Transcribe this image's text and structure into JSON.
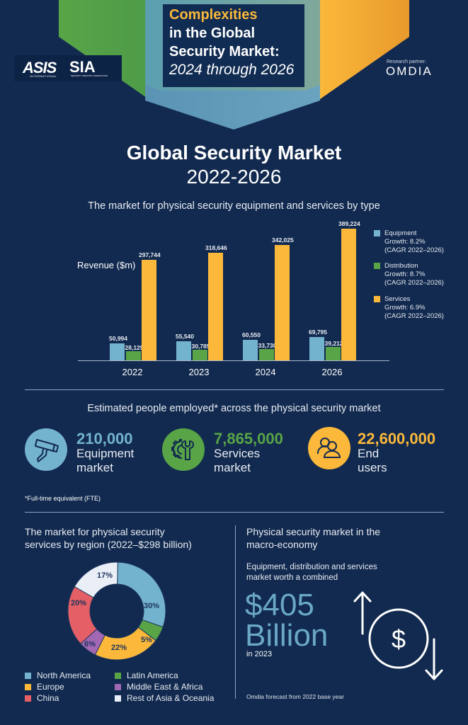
{
  "header": {
    "title_line1": "Complexities",
    "title_line2": "in the Global",
    "title_line3": "Security Market:",
    "title_line4": "2024 through 2026",
    "logo_asis": "ASIS",
    "logo_asis_sub": "INTERNATIONAL",
    "logo_sia": "SIA",
    "logo_sia_sub": "SECURITY INDUSTRY ASSOCIATION",
    "partner_label": "Research partner:",
    "partner_name": "OMDIA"
  },
  "market": {
    "title": "Global Security Market",
    "years": "2022-2026",
    "subtitle": "The market for physical security equipment and services by type",
    "ylabel": "Revenue ($m)"
  },
  "colors": {
    "background": "#122a4f",
    "equipment": "#74b3cd",
    "distribution": "#58a447",
    "services": "#fbb83a",
    "north_america": "#74b3cd",
    "latin_america": "#58a447",
    "europe": "#fbb83a",
    "middle_east_africa": "#a268b4",
    "china": "#e55f66",
    "rest_of_asia": "#e9eef7"
  },
  "chart_data": [
    {
      "type": "bar",
      "title": "The market for physical security equipment and services by type",
      "xlabel": "",
      "ylabel": "Revenue ($m)",
      "categories": [
        "2022",
        "2023",
        "2024",
        "2026"
      ],
      "series": [
        {
          "name": "Equipment",
          "values": [
            50994,
            55540,
            60550,
            69795
          ]
        },
        {
          "name": "Distribution",
          "values": [
            28129,
            30785,
            33730,
            39212
          ]
        },
        {
          "name": "Services",
          "values": [
            297744,
            318646,
            342025,
            389224
          ]
        }
      ],
      "value_labels": {
        "Equipment": [
          "50,994",
          "55,540",
          "60,550",
          "69,795"
        ],
        "Distribution": [
          "28,129",
          "30,785",
          "33,730",
          "39,212"
        ],
        "Services": [
          "297,744",
          "318,646",
          "342,025",
          "389,224"
        ]
      },
      "legend": [
        {
          "name": "Equipment",
          "growth": "Growth: 8.2%",
          "note": "(CAGR 2022–2026)"
        },
        {
          "name": "Distribution",
          "growth": "Growth: 8.7%",
          "note": "(CAGR 2022–2026)"
        },
        {
          "name": "Services",
          "growth": "Growth: 6.9%",
          "note": "(CAGR 2022–2026)"
        }
      ],
      "legend_position": "right",
      "grid": false
    },
    {
      "type": "pie",
      "title": "The market for physical security services by region (2022–$298 billion)",
      "categories": [
        "North America",
        "Latin America",
        "Europe",
        "Middle East & Africa",
        "China",
        "Rest of Asia & Oceania"
      ],
      "values": [
        30,
        5,
        22,
        6,
        20,
        17
      ],
      "labels": [
        "30%",
        "5%",
        "22%",
        "6%",
        "20%",
        "17%"
      ],
      "donut": true,
      "legend_position": "bottom"
    }
  ],
  "employment": {
    "title": "Estimated people employed* across the physical security market",
    "items": [
      {
        "number": "210,000",
        "label1": "Equipment",
        "label2": "market",
        "icon": "security-camera-icon"
      },
      {
        "number": "7,865,000",
        "label1": "Services",
        "label2": "market",
        "icon": "gear-wrench-icon"
      },
      {
        "number": "22,600,000",
        "label1": "End",
        "label2": "users",
        "icon": "users-icon"
      }
    ],
    "footnote": "*Full-time equivalent (FTE)"
  },
  "region": {
    "title_line1": "The market for physical security",
    "title_line2": "services by region (2022–$298 billion)",
    "legend": [
      "North America",
      "Europe",
      "China",
      "Latin America",
      "Middle East & Africa",
      "Rest of Asia & Oceania"
    ]
  },
  "macro": {
    "title_line1": "Physical security market in the",
    "title_line2": "macro-economy",
    "sub_line1": "Equipment, distribution and services",
    "sub_line2": "market worth a combined",
    "amount": "$405",
    "unit": "Billion",
    "year": "in 2023",
    "footnote": "Omdia forecast from 2022 base year",
    "icon_symbol": "$"
  }
}
